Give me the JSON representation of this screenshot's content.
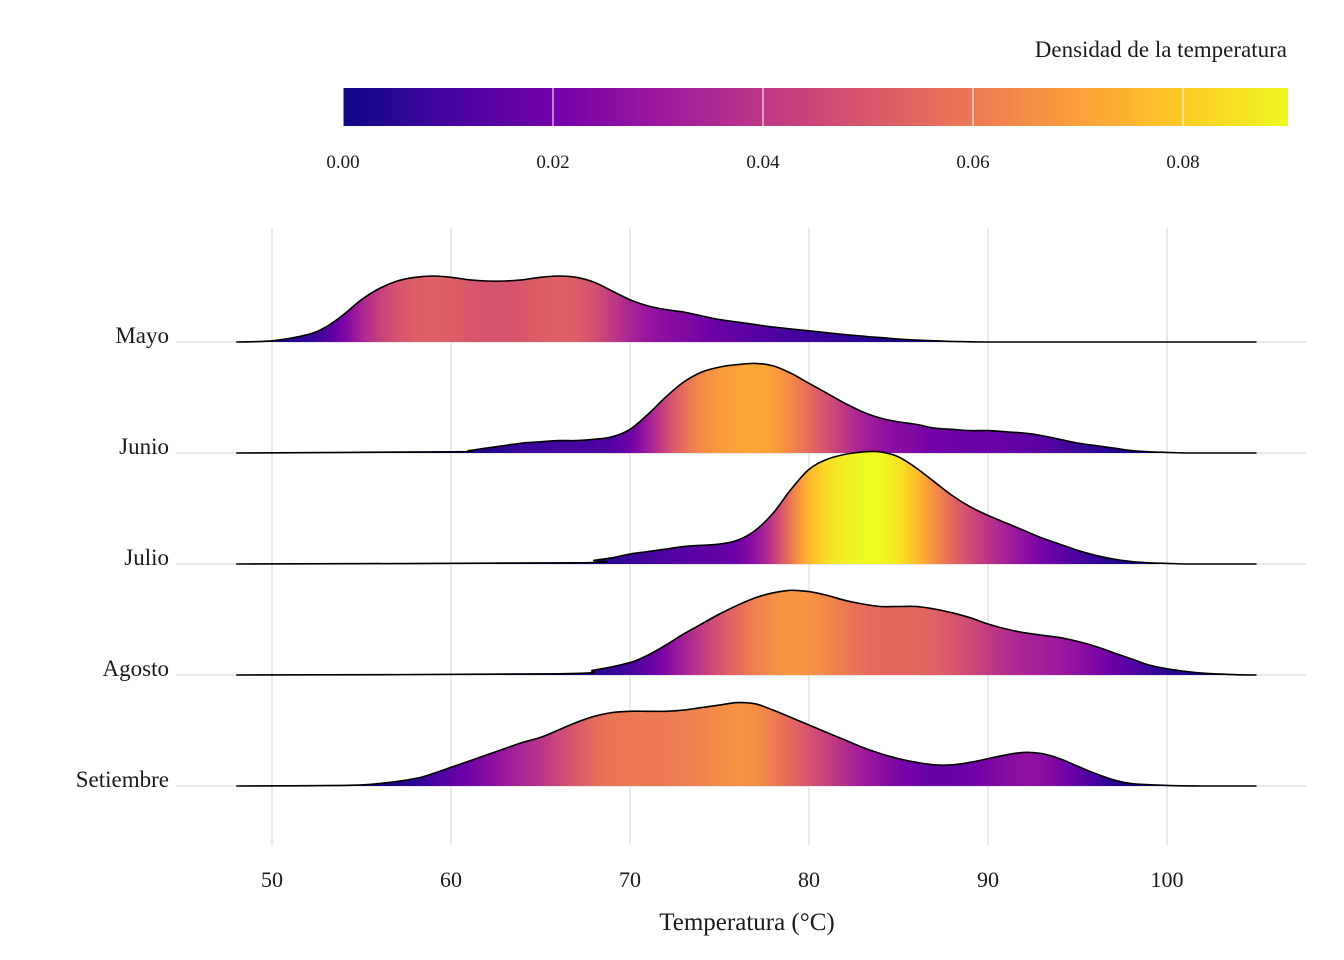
{
  "chart_data": {
    "type": "area",
    "subtype": "ridgeline",
    "xlabel": "Temperatura (°C)",
    "ylabel": "",
    "xlim": [
      46,
      107
    ],
    "x_ticks": [
      50,
      60,
      70,
      80,
      90,
      100
    ],
    "x_tick_labels": [
      "50",
      "60",
      "70",
      "80",
      "90",
      "100"
    ],
    "grid": true,
    "legend": {
      "title": "Densidad de la temperatura",
      "position": "top",
      "type": "colorbar",
      "palette": "plasma",
      "range": [
        0,
        0.09
      ],
      "ticks": [
        0.0,
        0.02,
        0.04,
        0.06,
        0.08
      ],
      "tick_labels": [
        "0.00",
        "0.02",
        "0.04",
        "0.06",
        "0.08"
      ],
      "colors": [
        "#0d0887",
        "#46039f",
        "#7201a8",
        "#9c179e",
        "#bd3786",
        "#d8576b",
        "#ed7953",
        "#fb9f3a",
        "#fdca26",
        "#f0f921"
      ]
    },
    "series": [
      {
        "name": "Mayo",
        "x": [
          48,
          50,
          52,
          53,
          54,
          55,
          56,
          57,
          58,
          59,
          60,
          61,
          62,
          63,
          64,
          65,
          66,
          67,
          68,
          69,
          70,
          71,
          72,
          73,
          74,
          75,
          76,
          77,
          78,
          80,
          82,
          84,
          86,
          88,
          89,
          90
        ],
        "density": [
          0.0,
          0.001,
          0.006,
          0.012,
          0.022,
          0.034,
          0.043,
          0.049,
          0.052,
          0.053,
          0.052,
          0.05,
          0.049,
          0.049,
          0.05,
          0.052,
          0.053,
          0.052,
          0.048,
          0.041,
          0.034,
          0.029,
          0.026,
          0.024,
          0.021,
          0.018,
          0.016,
          0.014,
          0.012,
          0.009,
          0.006,
          0.0035,
          0.0015,
          0.0005,
          0.0002,
          0.0
        ]
      },
      {
        "name": "Junio",
        "x": [
          48,
          60,
          61,
          62,
          63,
          64,
          65,
          66,
          67,
          68,
          69,
          70,
          71,
          72,
          73,
          74,
          75,
          76,
          77,
          78,
          79,
          80,
          81,
          82,
          83,
          84,
          85,
          86,
          87,
          88,
          89,
          90,
          91,
          92,
          93,
          94,
          95,
          96,
          97,
          98,
          99,
          100,
          101
        ],
        "density": [
          0.0,
          0.001,
          0.002,
          0.004,
          0.006,
          0.008,
          0.009,
          0.01,
          0.01,
          0.011,
          0.013,
          0.019,
          0.031,
          0.045,
          0.057,
          0.065,
          0.069,
          0.071,
          0.072,
          0.07,
          0.064,
          0.056,
          0.048,
          0.04,
          0.033,
          0.028,
          0.025,
          0.023,
          0.02,
          0.019,
          0.018,
          0.018,
          0.017,
          0.016,
          0.014,
          0.011,
          0.008,
          0.006,
          0.004,
          0.002,
          0.001,
          0.0005,
          0.0
        ]
      },
      {
        "name": "Julio",
        "x": [
          48,
          67,
          68,
          69,
          70,
          71,
          72,
          73,
          74,
          75,
          76,
          77,
          78,
          79,
          80,
          81,
          82,
          83,
          84,
          85,
          86,
          87,
          88,
          89,
          90,
          91,
          92,
          93,
          94,
          95,
          96,
          97,
          98,
          99,
          100,
          101
        ],
        "density": [
          0.0,
          0.001,
          0.003,
          0.005,
          0.008,
          0.01,
          0.012,
          0.014,
          0.015,
          0.016,
          0.019,
          0.027,
          0.041,
          0.06,
          0.076,
          0.084,
          0.088,
          0.09,
          0.09,
          0.086,
          0.077,
          0.066,
          0.055,
          0.046,
          0.039,
          0.033,
          0.027,
          0.021,
          0.016,
          0.011,
          0.007,
          0.004,
          0.002,
          0.001,
          0.0005,
          0.0
        ]
      },
      {
        "name": "Agosto",
        "x": [
          48,
          66,
          68,
          70,
          71,
          72,
          73,
          74,
          75,
          76,
          77,
          78,
          79,
          80,
          81,
          82,
          83,
          84,
          85,
          86,
          87,
          88,
          89,
          90,
          91,
          92,
          93,
          94,
          95,
          96,
          97,
          98,
          99,
          100,
          101,
          102,
          103,
          104,
          105
        ],
        "density": [
          0.0,
          0.001,
          0.004,
          0.01,
          0.016,
          0.024,
          0.033,
          0.041,
          0.049,
          0.056,
          0.062,
          0.066,
          0.068,
          0.067,
          0.064,
          0.06,
          0.057,
          0.055,
          0.055,
          0.055,
          0.053,
          0.05,
          0.046,
          0.041,
          0.037,
          0.034,
          0.032,
          0.03,
          0.027,
          0.023,
          0.018,
          0.013,
          0.008,
          0.005,
          0.003,
          0.0015,
          0.0007,
          0.0002,
          0.0
        ]
      },
      {
        "name": "Setiembre",
        "x": [
          48,
          54,
          56,
          58,
          59,
          60,
          61,
          62,
          63,
          64,
          65,
          66,
          67,
          68,
          69,
          70,
          71,
          72,
          73,
          74,
          75,
          76,
          77,
          78,
          79,
          80,
          81,
          82,
          83,
          84,
          85,
          86,
          87,
          88,
          89,
          90,
          91,
          92,
          93,
          94,
          95,
          96,
          97,
          98,
          100,
          102
        ],
        "density": [
          0.0,
          0.0005,
          0.002,
          0.006,
          0.01,
          0.015,
          0.02,
          0.025,
          0.03,
          0.035,
          0.039,
          0.045,
          0.051,
          0.056,
          0.059,
          0.06,
          0.06,
          0.06,
          0.061,
          0.063,
          0.065,
          0.067,
          0.066,
          0.061,
          0.055,
          0.049,
          0.043,
          0.037,
          0.031,
          0.026,
          0.022,
          0.019,
          0.017,
          0.017,
          0.019,
          0.022,
          0.025,
          0.027,
          0.026,
          0.022,
          0.016,
          0.01,
          0.005,
          0.002,
          0.0005,
          0.0
        ]
      }
    ]
  }
}
